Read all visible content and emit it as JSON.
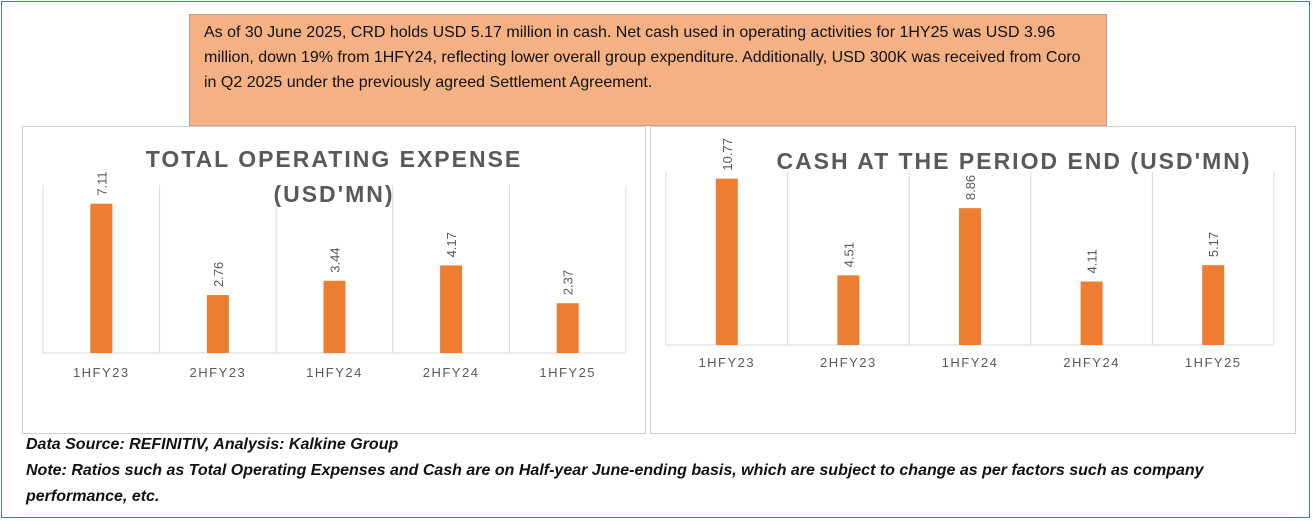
{
  "summary": {
    "text": "As of 30 June 2025, CRD holds USD 5.17 million in cash. Net cash used in operating activities for 1HY25 was USD 3.96 million, down 19% from 1HFY24, reflecting lower overall group expenditure. Additionally, USD 300K was received from Coro in Q2 2025 under the previously agreed Settlement Agreement."
  },
  "colors": {
    "bar": "#ed7d31",
    "summary_bg": "#f4b183",
    "title": "#595959",
    "axis_text": "#595959",
    "grid": "#d9d9d9",
    "frame": "#4a74b4"
  },
  "chart_data": [
    {
      "type": "bar",
      "title_lines": [
        "TOTAL OPERATING EXPENSE",
        "(USD'MN)"
      ],
      "categories": [
        "1HFY23",
        "2HFY23",
        "1HFY24",
        "2HFY24",
        "1HFY25"
      ],
      "values": [
        7.11,
        2.76,
        3.44,
        4.17,
        2.37
      ],
      "value_labels": [
        "7.11",
        "2.76",
        "3.44",
        "4.17",
        "2.37"
      ],
      "ylim": [
        0,
        8
      ],
      "grid": "vertical",
      "legend": "none"
    },
    {
      "type": "bar",
      "title_lines": [
        "CASH AT THE PERIOD END (USD'MN)"
      ],
      "categories": [
        "1HFY23",
        "2HFY23",
        "1HFY24",
        "2HFY24",
        "1HFY25"
      ],
      "values": [
        10.77,
        4.51,
        8.86,
        4.11,
        5.17
      ],
      "value_labels": [
        "10.77",
        "4.51",
        "8.86",
        "4.11",
        "5.17"
      ],
      "ylim": [
        0,
        11.2
      ],
      "grid": "vertical",
      "legend": "none"
    }
  ],
  "footer": {
    "source": "Data Source: REFINITIV, Analysis: Kalkine Group",
    "note": "Note: Ratios such as Total Operating Expenses and Cash are on Half-year June-ending basis, which are subject to change as per factors such as company performance, etc."
  }
}
